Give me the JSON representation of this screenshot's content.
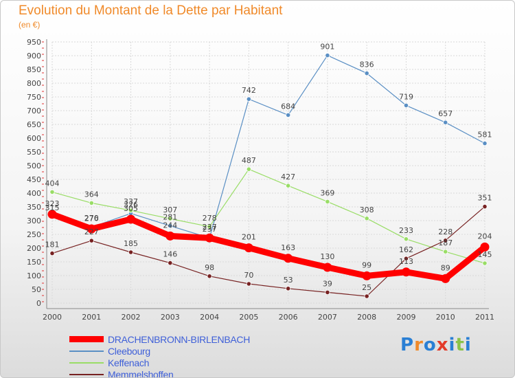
{
  "title": "Evolution du Montant de la Dette par Habitant",
  "unit_label": "(en €)",
  "logo": {
    "text": "Proxiti",
    "colors": [
      "#2a7fd4",
      "#f08a2a",
      "#2a7fd4",
      "#e33b2a",
      "#2a7fd4",
      "#8bc34a",
      "#2a7fd4"
    ]
  },
  "chart_data": {
    "type": "line",
    "title": "Evolution du Montant de la Dette par Habitant",
    "ylabel": "(en €)",
    "xlabel": "",
    "x": [
      "2000",
      "2001",
      "2002",
      "2003",
      "2004",
      "2005",
      "2006",
      "2007",
      "2008",
      "2009",
      "2010",
      "2011"
    ],
    "ylim": [
      0,
      950
    ],
    "yticks": [
      0,
      50,
      100,
      150,
      200,
      250,
      300,
      350,
      400,
      450,
      500,
      550,
      600,
      650,
      700,
      750,
      800,
      850,
      900,
      950
    ],
    "grid": true,
    "legend_position": "bottom-left",
    "series": [
      {
        "name": "DRACHENBRONN-BIRLENBACH",
        "color": "#ff0000",
        "values": [
          323,
          270,
          305,
          244,
          237,
          201,
          163,
          130,
          99,
          113,
          89,
          204
        ],
        "labels": [
          "323",
          "270",
          "305",
          "244",
          "237",
          "201",
          "163",
          "130",
          "99",
          "113",
          "89",
          "204"
        ]
      },
      {
        "name": "Cleebourg",
        "color": "#5a8fc4",
        "values": [
          315,
          276,
          326,
          281,
          237,
          742,
          684,
          901,
          836,
          719,
          657,
          581
        ],
        "labels": [
          "315",
          "276",
          "326",
          "281",
          "237",
          "742",
          "684",
          "901",
          "836",
          "719",
          "657",
          "581"
        ]
      },
      {
        "name": "Keffenach",
        "color": "#99dd66",
        "values": [
          404,
          364,
          337,
          307,
          278,
          487,
          427,
          369,
          308,
          233,
          187,
          145
        ],
        "labels": [
          "404",
          "364",
          "337",
          "307",
          "278",
          "487",
          "427",
          "369",
          "308",
          "233",
          "187",
          "145"
        ]
      },
      {
        "name": "Memmelshoffen",
        "color": "#772222",
        "values": [
          181,
          227,
          185,
          146,
          98,
          70,
          53,
          39,
          25,
          162,
          228,
          351
        ],
        "labels": [
          "181",
          "227",
          "185",
          "146",
          "98",
          "70",
          "53",
          "39",
          "25",
          "162",
          "228",
          "351"
        ]
      }
    ]
  }
}
